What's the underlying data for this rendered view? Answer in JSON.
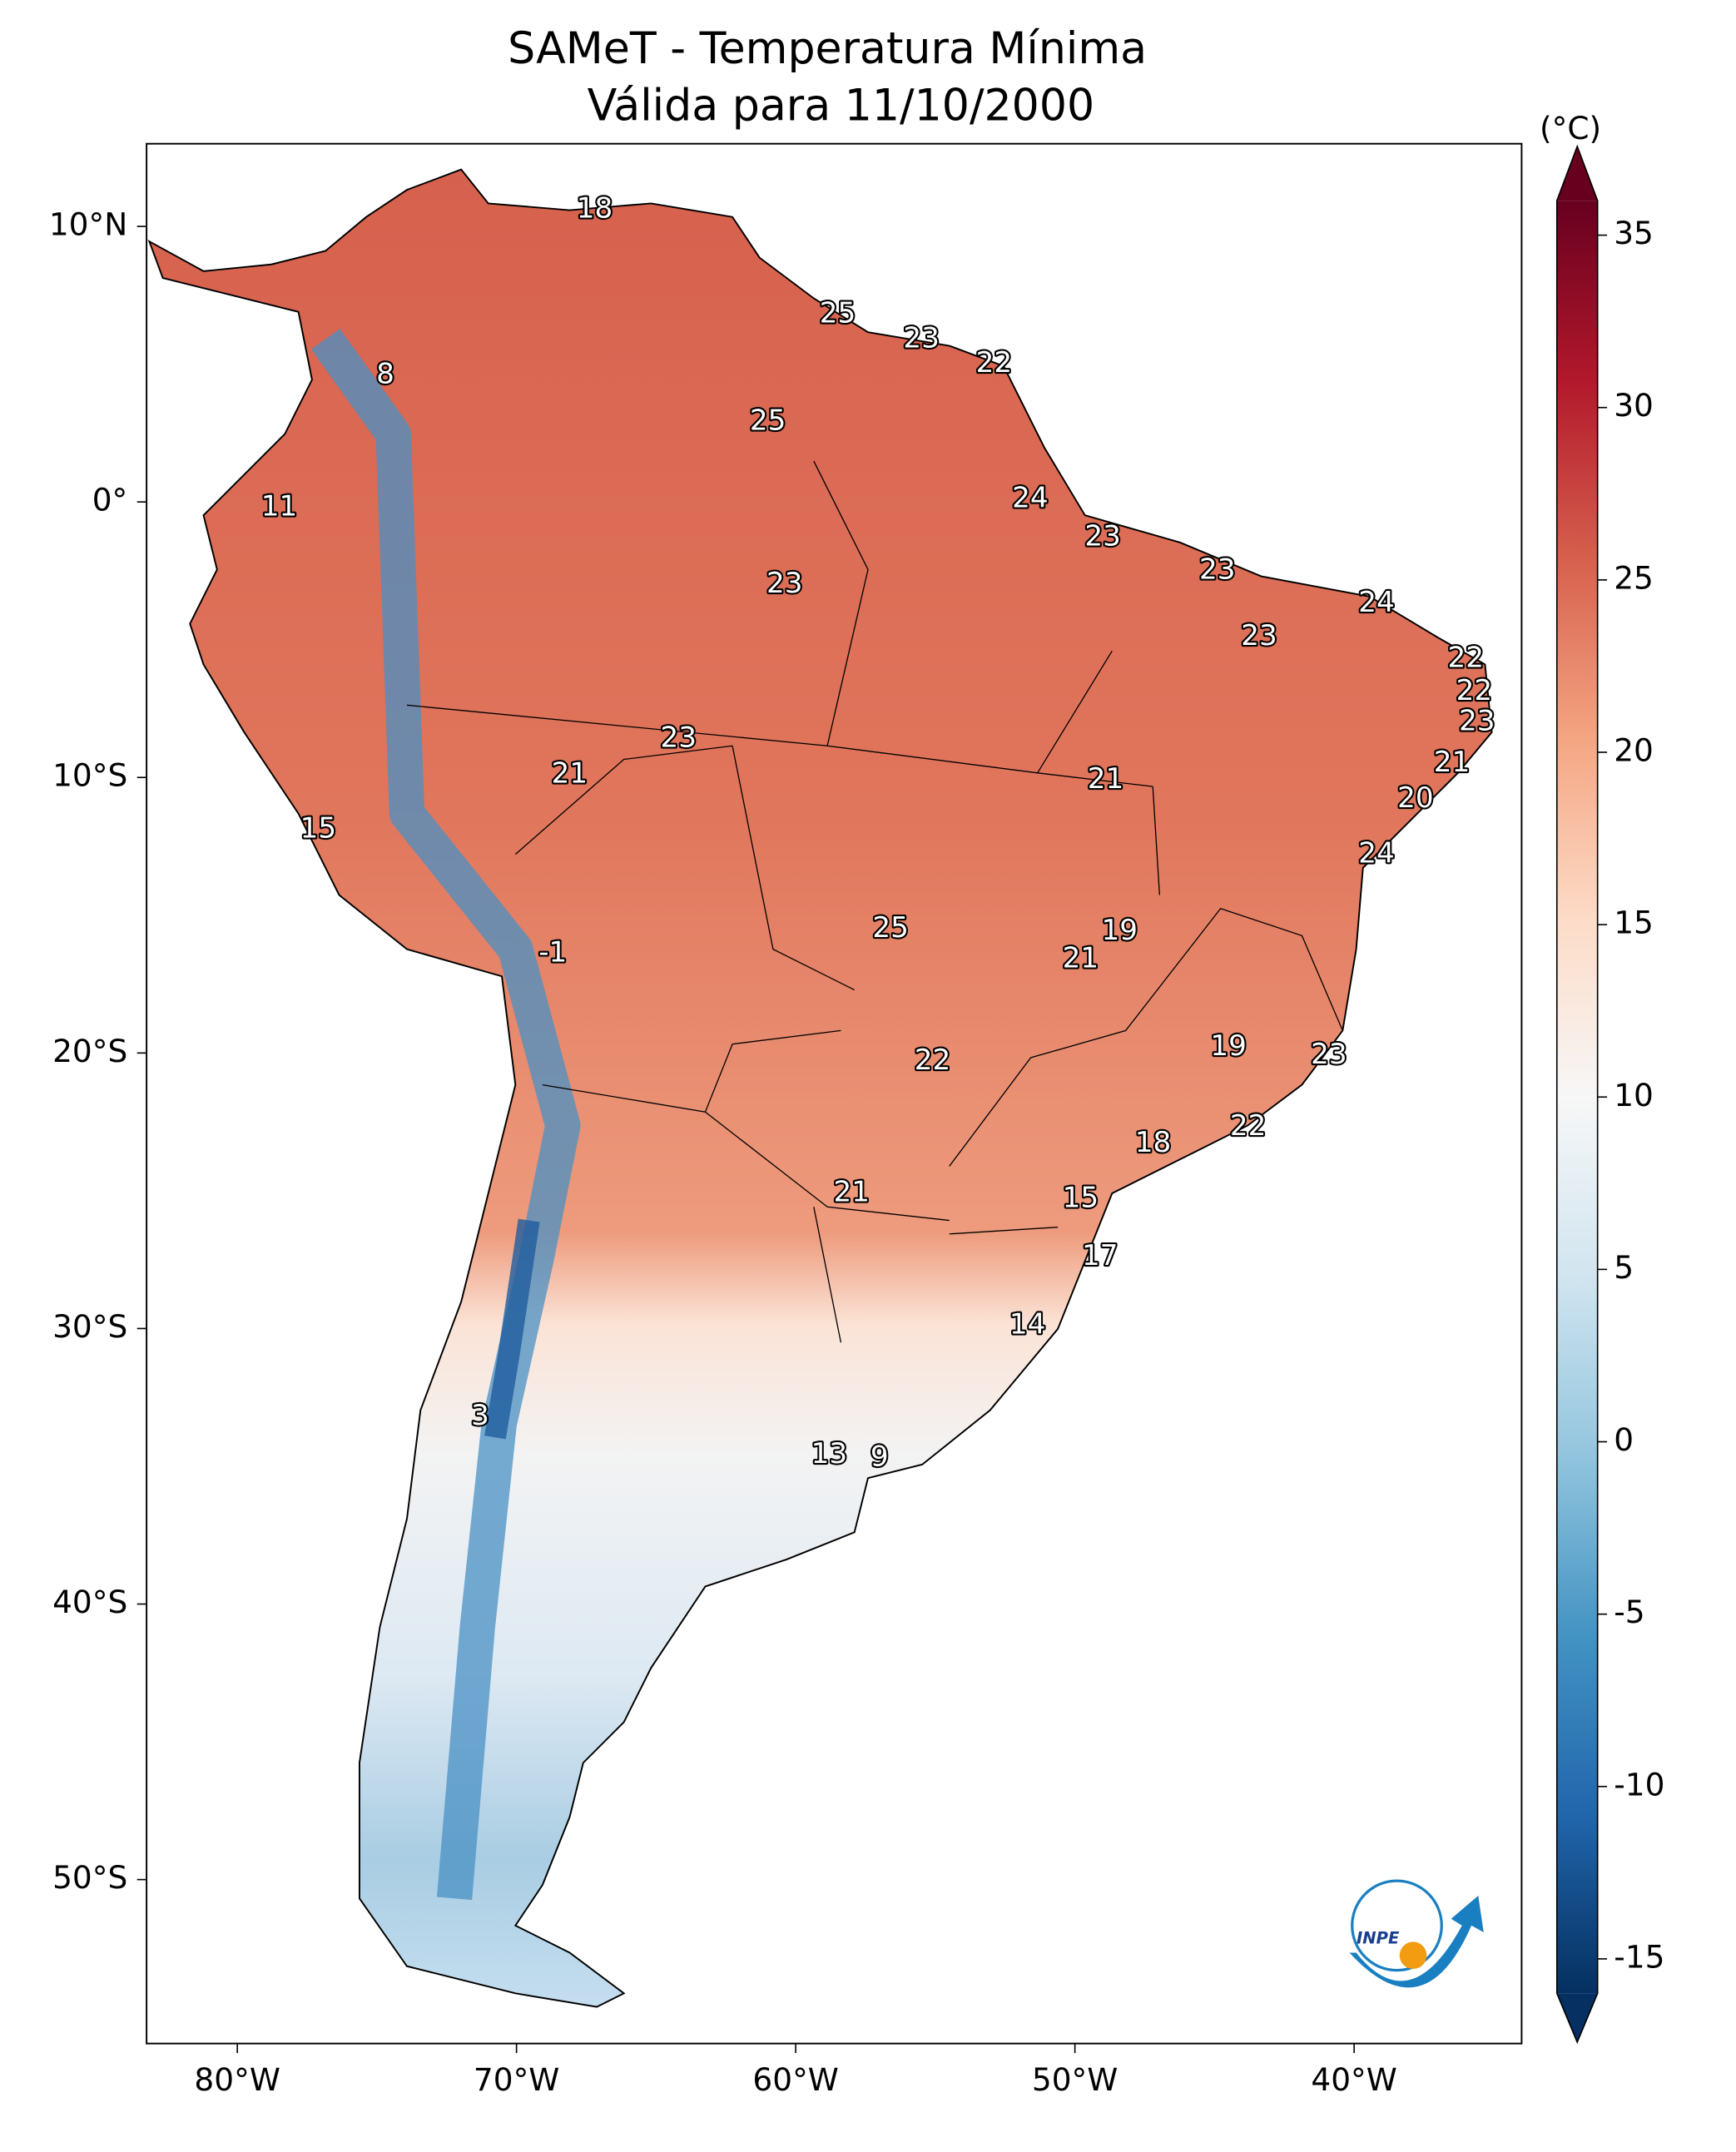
{
  "chart_data": {
    "type": "map",
    "title": "SAMeT - Temperatura Mínima",
    "subtitle": "Válida para 11/10/2000",
    "xlim": [
      -83.25,
      -34.0
    ],
    "ylim": [
      -55.95,
      13.0
    ],
    "xticks": [
      {
        "value": -80,
        "label": "80°W"
      },
      {
        "value": -70,
        "label": "70°W"
      },
      {
        "value": -60,
        "label": "60°W"
      },
      {
        "value": -50,
        "label": "50°W"
      },
      {
        "value": -40,
        "label": "40°W"
      }
    ],
    "yticks": [
      {
        "value": 10,
        "label": "10°N"
      },
      {
        "value": 0,
        "label": "0°"
      },
      {
        "value": -10,
        "label": "10°S"
      },
      {
        "value": -20,
        "label": "20°S"
      },
      {
        "value": -30,
        "label": "30°S"
      },
      {
        "value": -40,
        "label": "40°S"
      },
      {
        "value": -50,
        "label": "50°S"
      }
    ],
    "colorbar": {
      "label": "(°C)",
      "clim": [
        -16,
        36
      ],
      "ticks": [
        -15,
        -10,
        -5,
        0,
        5,
        10,
        15,
        20,
        25,
        30,
        35
      ],
      "colormap": [
        "#053061",
        "#2166ac",
        "#4393c3",
        "#92c5de",
        "#d1e5f0",
        "#f7f7f7",
        "#fddbc7",
        "#f4a582",
        "#d6604d",
        "#b2182b",
        "#67001f"
      ]
    },
    "logo": "INPE",
    "stations": [
      {
        "lon": -67.2,
        "lat": 10.6,
        "value": 18
      },
      {
        "lon": -58.5,
        "lat": 6.8,
        "value": 25
      },
      {
        "lon": -55.5,
        "lat": 5.9,
        "value": 23
      },
      {
        "lon": -52.9,
        "lat": 5.0,
        "value": 22
      },
      {
        "lon": -74.7,
        "lat": 4.6,
        "value": 8
      },
      {
        "lon": -61.0,
        "lat": 2.9,
        "value": 25
      },
      {
        "lon": -78.5,
        "lat": -0.2,
        "value": 11
      },
      {
        "lon": -51.6,
        "lat": 0.1,
        "value": 24
      },
      {
        "lon": -49.0,
        "lat": -1.3,
        "value": 23
      },
      {
        "lon": -44.9,
        "lat": -2.5,
        "value": 23
      },
      {
        "lon": -39.2,
        "lat": -3.7,
        "value": 24
      },
      {
        "lon": -60.4,
        "lat": -3.0,
        "value": 23
      },
      {
        "lon": -43.4,
        "lat": -4.9,
        "value": 23
      },
      {
        "lon": -36.0,
        "lat": -5.7,
        "value": 22
      },
      {
        "lon": -35.7,
        "lat": -6.9,
        "value": 22
      },
      {
        "lon": -35.6,
        "lat": -8.0,
        "value": 23
      },
      {
        "lon": -64.2,
        "lat": -8.6,
        "value": 23
      },
      {
        "lon": -36.5,
        "lat": -9.5,
        "value": 21
      },
      {
        "lon": -68.1,
        "lat": -9.9,
        "value": 21
      },
      {
        "lon": -48.9,
        "lat": -10.1,
        "value": 21
      },
      {
        "lon": -37.8,
        "lat": -10.8,
        "value": 20
      },
      {
        "lon": -77.1,
        "lat": -11.9,
        "value": 15
      },
      {
        "lon": -39.2,
        "lat": -12.8,
        "value": 24
      },
      {
        "lon": -56.6,
        "lat": -15.5,
        "value": 25
      },
      {
        "lon": -48.4,
        "lat": -15.6,
        "value": 19
      },
      {
        "lon": -68.7,
        "lat": -16.4,
        "value": -1
      },
      {
        "lon": -49.8,
        "lat": -16.6,
        "value": 21
      },
      {
        "lon": -44.5,
        "lat": -19.8,
        "value": 19
      },
      {
        "lon": -40.9,
        "lat": -20.1,
        "value": 23
      },
      {
        "lon": -55.1,
        "lat": -20.3,
        "value": 22
      },
      {
        "lon": -43.8,
        "lat": -22.7,
        "value": 22
      },
      {
        "lon": -47.2,
        "lat": -23.3,
        "value": 18
      },
      {
        "lon": -58.0,
        "lat": -25.1,
        "value": 21
      },
      {
        "lon": -49.8,
        "lat": -25.3,
        "value": 15
      },
      {
        "lon": -49.1,
        "lat": -27.4,
        "value": 17
      },
      {
        "lon": -51.7,
        "lat": -29.9,
        "value": 14
      },
      {
        "lon": -71.3,
        "lat": -33.2,
        "value": 3
      },
      {
        "lon": -58.8,
        "lat": -34.6,
        "value": 13
      },
      {
        "lon": -57.0,
        "lat": -34.7,
        "value": 9
      }
    ]
  }
}
